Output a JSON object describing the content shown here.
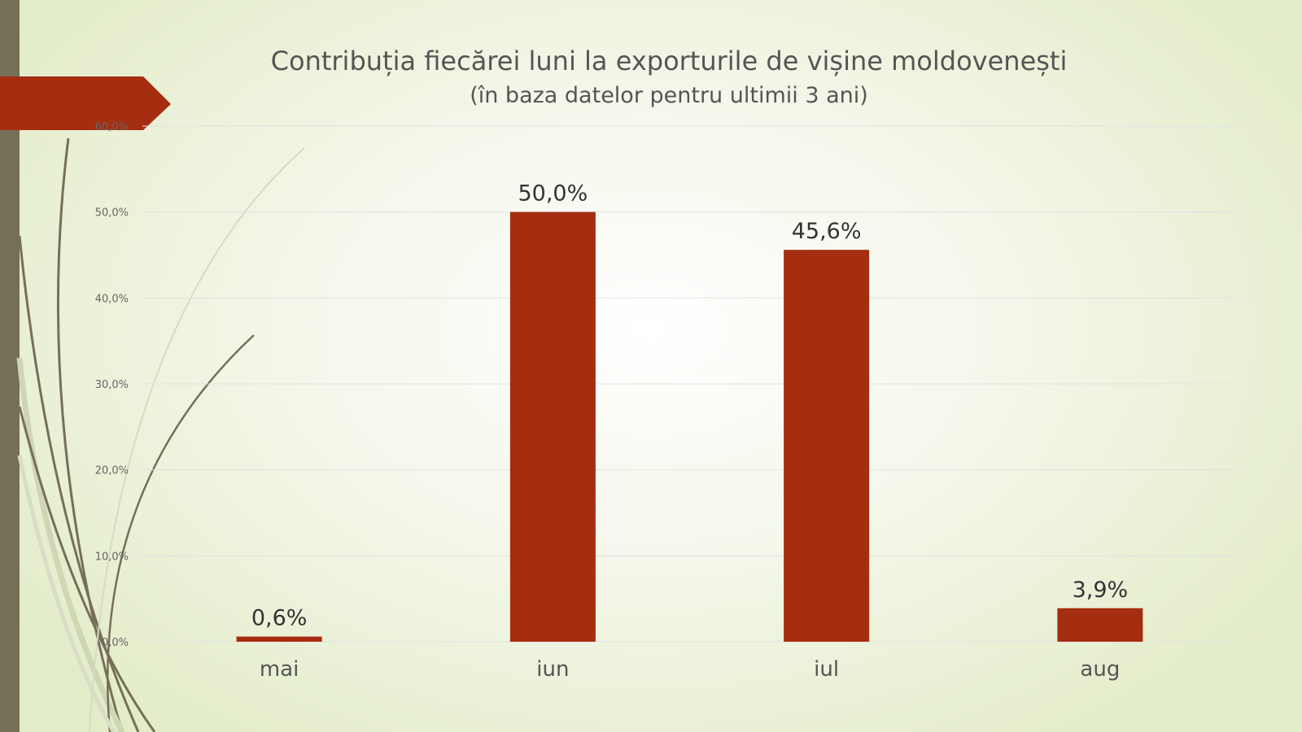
{
  "chart_data": {
    "type": "bar",
    "title": "Contribuția fiecărei luni la exporturile de vișine moldovenești",
    "subtitle": "(în baza datelor pentru ultimii 3 ani)",
    "categories": [
      "mai",
      "iun",
      "iul",
      "aug"
    ],
    "values": [
      0.6,
      50.0,
      45.6,
      3.9
    ],
    "data_labels": [
      "0,6%",
      "50,0%",
      "45,6%",
      "3,9%"
    ],
    "y_ticks": [
      "0,0%",
      "10,0%",
      "20,0%",
      "30,0%",
      "40,0%",
      "50,0%",
      "60,0%"
    ],
    "ylim": [
      0,
      60
    ],
    "grid": true,
    "legend": "none",
    "bar_color": "#a52d10",
    "gridline_color": "#e2e2e2"
  },
  "decor": {
    "accent_color": "#a52d10",
    "side_bar_color": "#766f57"
  }
}
